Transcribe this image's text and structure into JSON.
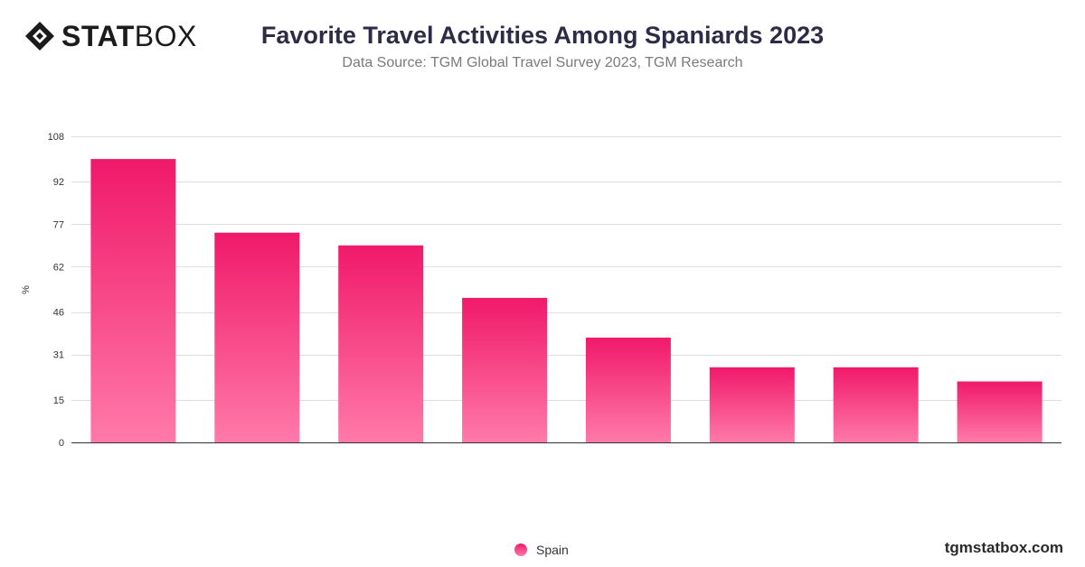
{
  "brand": {
    "logo_bold": "STAT",
    "logo_light": "BOX",
    "site": "tgmstatbox.com"
  },
  "header": {
    "title": "Favorite Travel Activities Among Spaniards 2023",
    "subtitle": "Data Source: TGM Global Travel Survey 2023, TGM Research"
  },
  "colors": {
    "bar_top": "#f0196a",
    "bar_bottom": "#ff7aa8",
    "grid": "#dddddd",
    "axis": "#333333"
  },
  "chart_data": {
    "type": "bar",
    "title": "Favorite Travel Activities Among Spaniards 2023",
    "ylabel": "%",
    "xlabel": "",
    "ylim": [
      0,
      108
    ],
    "yticks": [
      0,
      15,
      31,
      46,
      62,
      77,
      92,
      108
    ],
    "grid": true,
    "legend_position": "bottom",
    "categories": [
      "",
      "",
      "",
      "",
      "",
      "",
      "",
      ""
    ],
    "series": [
      {
        "name": "Spain",
        "values": [
          100,
          74,
          69.5,
          51,
          37,
          26.5,
          26.5,
          21.5
        ]
      }
    ]
  }
}
